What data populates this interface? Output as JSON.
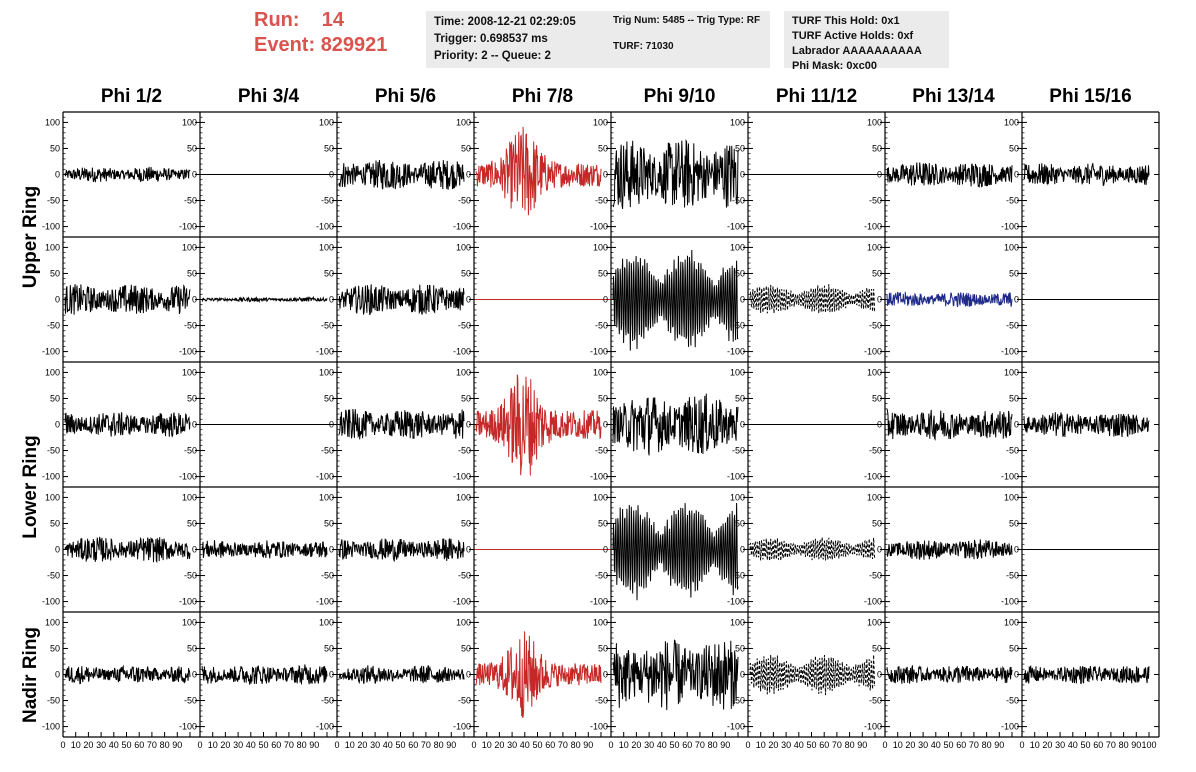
{
  "header": {
    "run_label": "Run:",
    "run_value": "14",
    "event_label": "Event:",
    "event_value": "829921",
    "accent_color": "#d9534f"
  },
  "info": {
    "time": "Time: 2008-12-21 02:29:05",
    "trigger": "Trigger: 0.698537 ms",
    "priority": "Priority: 2 -- Queue: 2",
    "trig_num": "Trig Num: 5485 -- Trig Type: RF",
    "turf": "TURF: 71030",
    "turf_hold": "TURF This Hold: 0x1",
    "turf_active": "TURF Active Holds: 0xf",
    "labrador": "Labrador AAAAAAAAAA",
    "phi_mask": "Phi Mask: 0xc00"
  },
  "chart_data": {
    "type": "line",
    "columns": [
      "Phi 1/2",
      "Phi 3/4",
      "Phi 5/6",
      "Phi 7/8",
      "Phi 9/10",
      "Phi 11/12",
      "Phi 13/14",
      "Phi 15/16"
    ],
    "rings": [
      "Upper Ring",
      "Lower Ring",
      "Nadir Ring"
    ],
    "ylim": [
      -120,
      120
    ],
    "xlim": [
      0,
      100
    ],
    "y_ticks": [
      100,
      50,
      0,
      -50,
      -100
    ],
    "x_ticks": [
      0,
      10,
      20,
      30,
      40,
      50,
      60,
      70,
      80,
      90,
      100
    ],
    "colors": {
      "default": "#000000",
      "red": "#c62828",
      "blue": "#1f2a8a"
    },
    "rows": [
      {
        "ring": "Upper Ring",
        "cells": [
          {
            "amp": 15,
            "style": "noise",
            "color": "default"
          },
          {
            "amp": 0,
            "style": "flat",
            "color": "default"
          },
          {
            "amp": 30,
            "style": "noise",
            "color": "default"
          },
          {
            "amp": 95,
            "style": "pulse",
            "color": "red"
          },
          {
            "amp": 70,
            "style": "noise",
            "color": "default"
          },
          {
            "amp": 0,
            "style": "flat",
            "color": "default"
          },
          {
            "amp": 25,
            "style": "noise",
            "color": "default"
          },
          {
            "amp": 22,
            "style": "noise",
            "color": "default"
          }
        ]
      },
      {
        "ring": "Upper Ring",
        "cells": [
          {
            "amp": 30,
            "style": "noise",
            "color": "default"
          },
          {
            "amp": 4,
            "style": "noise",
            "color": "default"
          },
          {
            "amp": 30,
            "style": "noise",
            "color": "default"
          },
          {
            "amp": 0,
            "style": "flat",
            "color": "red"
          },
          {
            "amp": 100,
            "style": "packet",
            "color": "default"
          },
          {
            "amp": 30,
            "style": "dashed",
            "color": "default"
          },
          {
            "amp": 15,
            "style": "noise",
            "color": "blue"
          },
          {
            "amp": 0,
            "style": "flat",
            "color": "default"
          }
        ]
      },
      {
        "ring": "Lower Ring",
        "cells": [
          {
            "amp": 25,
            "style": "noise",
            "color": "default"
          },
          {
            "amp": 0,
            "style": "flat",
            "color": "default"
          },
          {
            "amp": 30,
            "style": "noise",
            "color": "default"
          },
          {
            "amp": 110,
            "style": "pulse",
            "color": "red"
          },
          {
            "amp": 60,
            "style": "noise",
            "color": "default"
          },
          {
            "amp": 0,
            "style": "flat",
            "color": "default"
          },
          {
            "amp": 30,
            "style": "noise",
            "color": "default"
          },
          {
            "amp": 25,
            "style": "noise",
            "color": "default"
          }
        ]
      },
      {
        "ring": "Lower Ring",
        "cells": [
          {
            "amp": 25,
            "style": "noise",
            "color": "default"
          },
          {
            "amp": 18,
            "style": "noise",
            "color": "default"
          },
          {
            "amp": 22,
            "style": "noise",
            "color": "default"
          },
          {
            "amp": 0,
            "style": "flat",
            "color": "red"
          },
          {
            "amp": 100,
            "style": "packet",
            "color": "default"
          },
          {
            "amp": 25,
            "style": "dashed",
            "color": "default"
          },
          {
            "amp": 20,
            "style": "noise",
            "color": "default"
          },
          {
            "amp": 0,
            "style": "flat",
            "color": "default"
          }
        ]
      },
      {
        "ring": "Nadir Ring",
        "cells": [
          {
            "amp": 18,
            "style": "noise",
            "color": "default"
          },
          {
            "amp": 20,
            "style": "noise",
            "color": "default"
          },
          {
            "amp": 18,
            "style": "noise",
            "color": "default"
          },
          {
            "amp": 85,
            "style": "pulse",
            "color": "red"
          },
          {
            "amp": 70,
            "style": "noise",
            "color": "default"
          },
          {
            "amp": 40,
            "style": "dashed",
            "color": "default"
          },
          {
            "amp": 18,
            "style": "noise",
            "color": "default"
          },
          {
            "amp": 18,
            "style": "noise",
            "color": "default"
          }
        ]
      }
    ]
  }
}
